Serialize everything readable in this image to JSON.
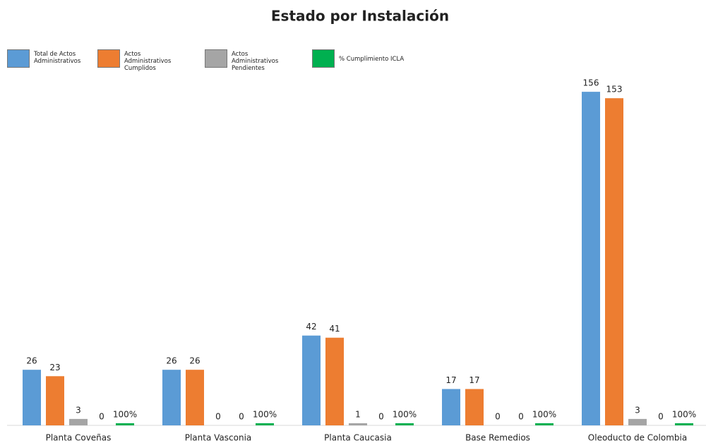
{
  "chart_data": {
    "type": "bar",
    "title": "Estado por Instalación",
    "categories": [
      "Planta Coveñas",
      "Planta Vasconia",
      "Planta Caucasia",
      "Base Remedios",
      "Oleoducto de Colombia"
    ],
    "series": [
      {
        "name": "Total de Actos Administrativos",
        "color": "#5b9bd5",
        "values": [
          26,
          26,
          42,
          17,
          156
        ]
      },
      {
        "name": "Actos Administrativos Cumplidos",
        "color": "#ed7d31",
        "values": [
          23,
          26,
          41,
          17,
          153
        ]
      },
      {
        "name": "Actos Administrativos Pendientes",
        "color": "#a5a5a5",
        "values": [
          3,
          0,
          1,
          0,
          3
        ]
      },
      {
        "color": "#ffc000",
        "values": [
          0,
          0,
          0,
          0,
          0
        ]
      },
      {
        "name": "% Cumplimiento ICLA",
        "color": "#00b050",
        "values": [
          1,
          1,
          1,
          1,
          1
        ],
        "value_labels": [
          "100%",
          "100%",
          "100%",
          "100%",
          "100%"
        ]
      }
    ],
    "ylim": [
      0,
      160
    ],
    "grid": false
  }
}
